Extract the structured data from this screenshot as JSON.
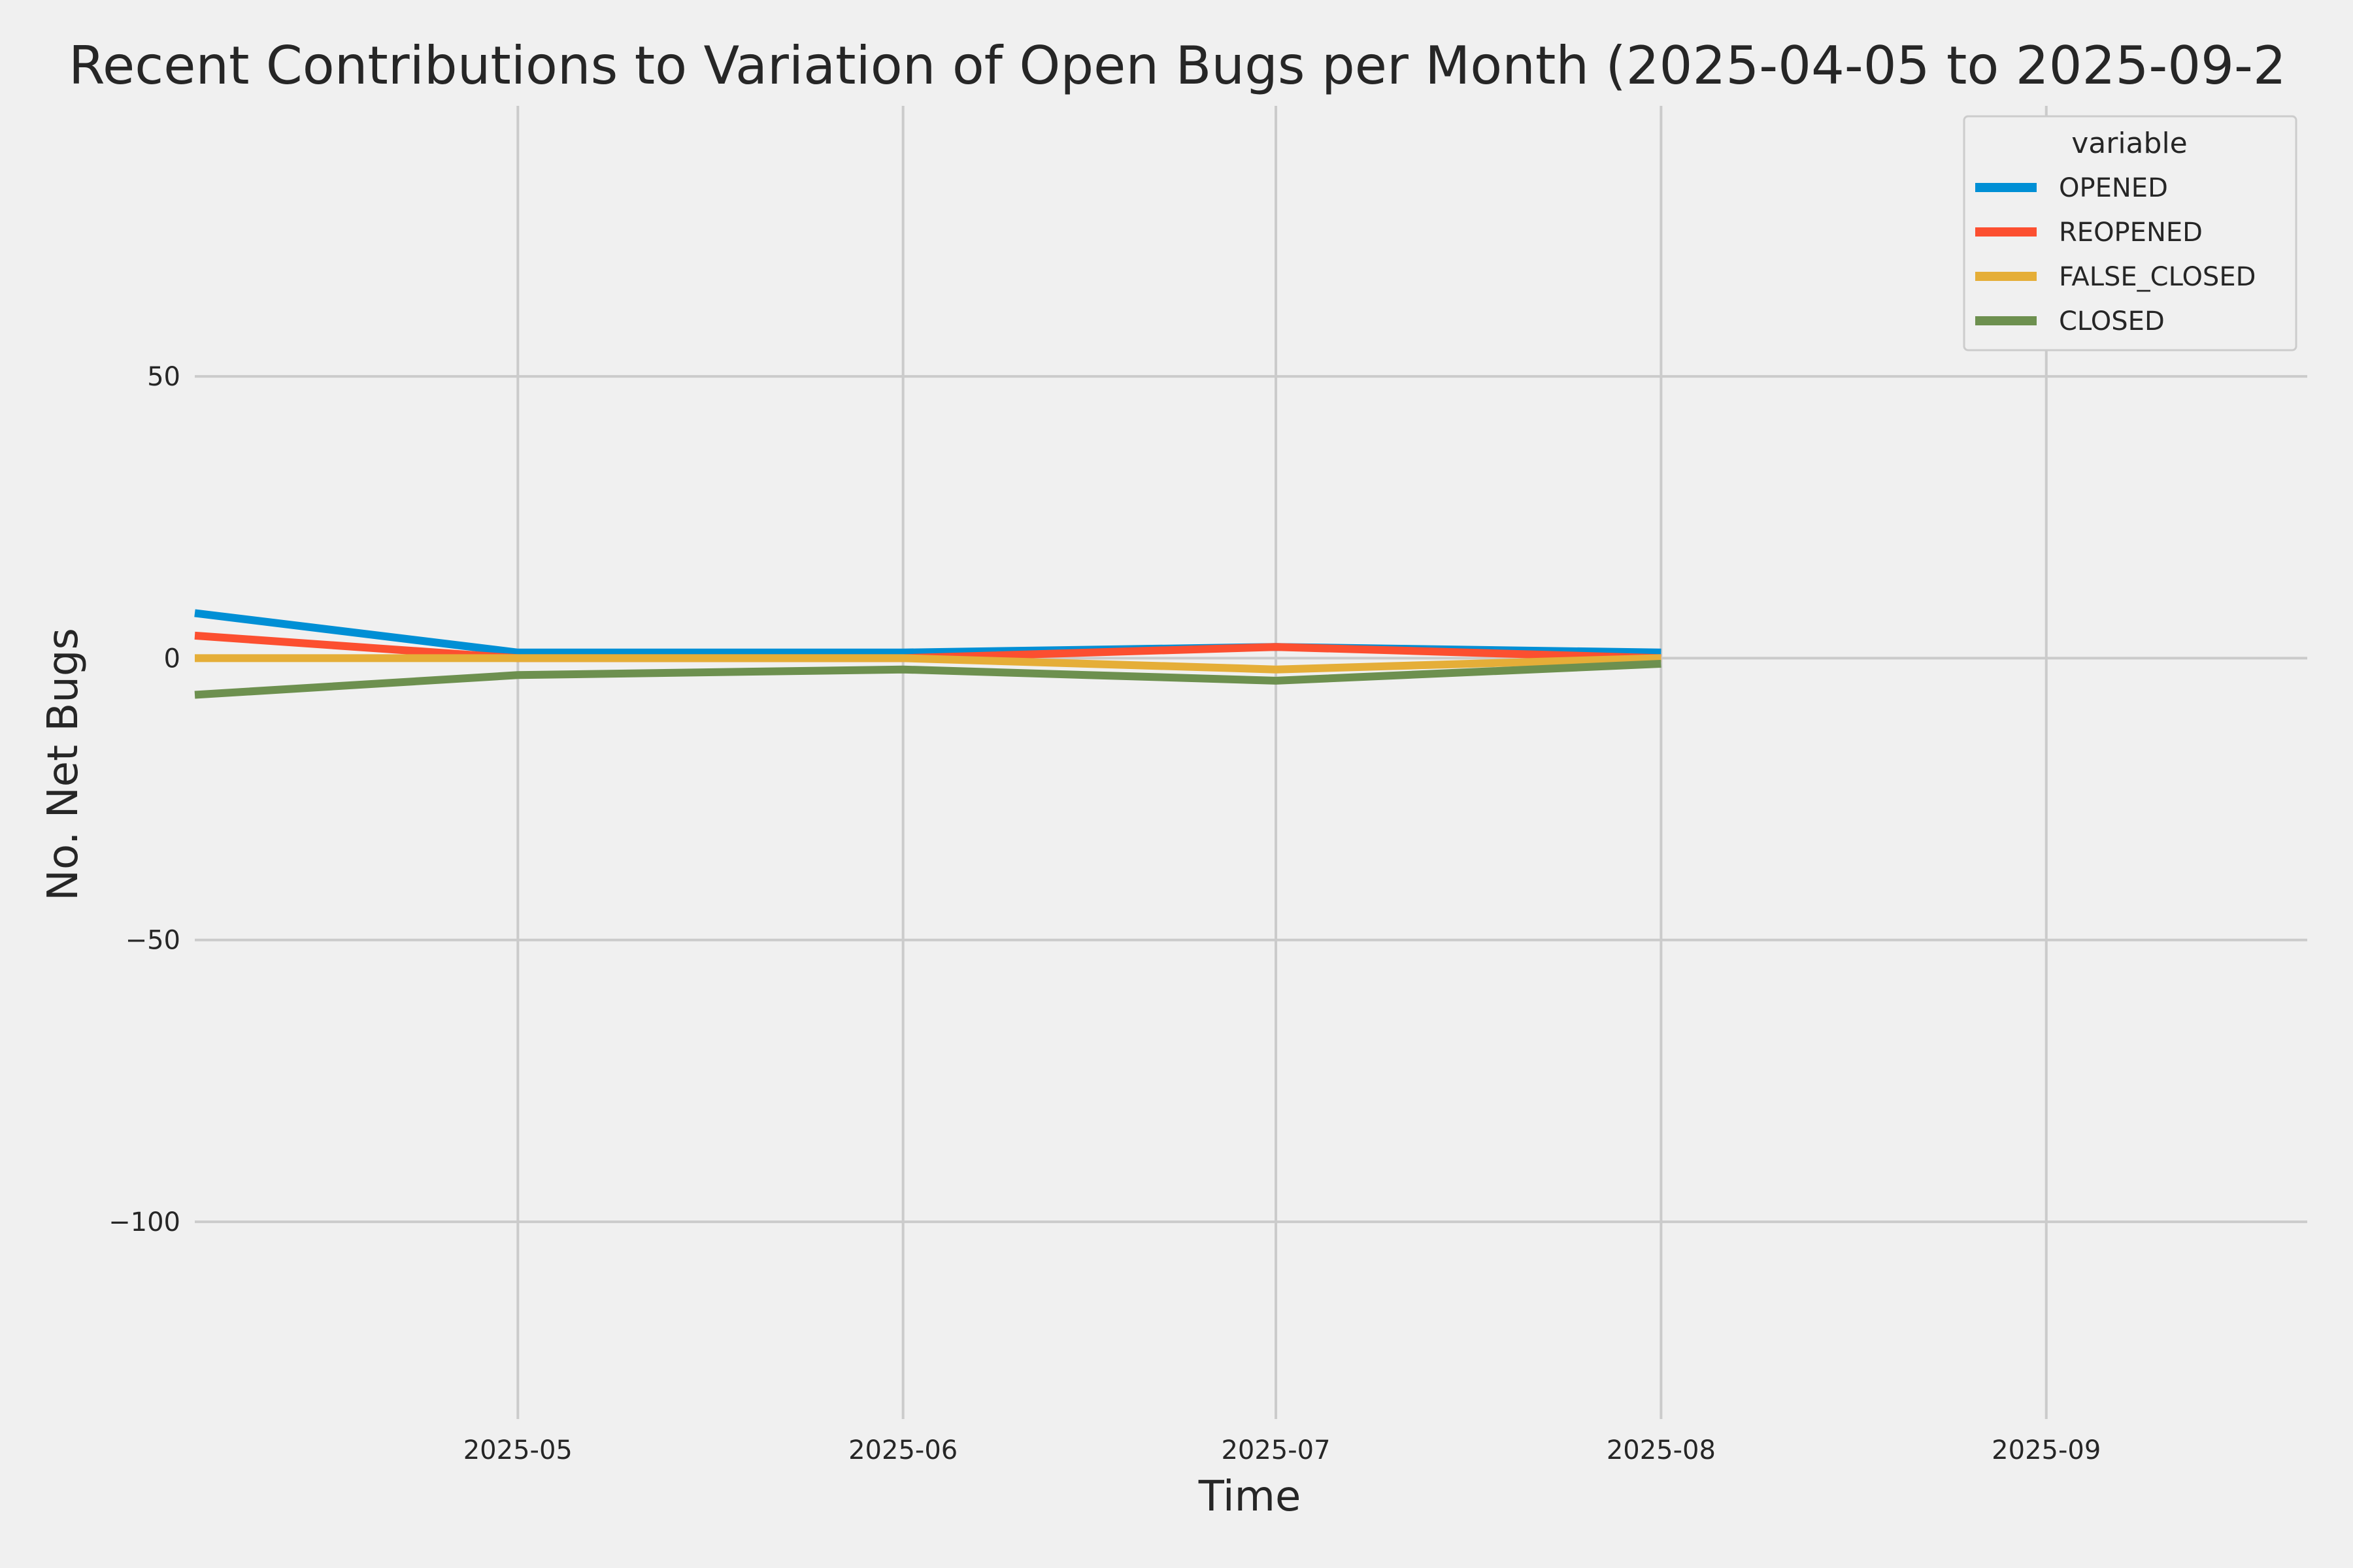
{
  "chart_data": {
    "type": "line",
    "title": "Recent Contributions to Variation of Open Bugs per Month (2025-04-05 to 2025-09-2",
    "xlabel": "Time",
    "ylabel": "No. Net Bugs",
    "x": [
      "2025-04-05",
      "2025-05-01",
      "2025-06-01",
      "2025-07-01",
      "2025-08-01"
    ],
    "x_ticks": [
      {
        "date": "2025-05-01",
        "label": "2025-05"
      },
      {
        "date": "2025-06-01",
        "label": "2025-06"
      },
      {
        "date": "2025-07-01",
        "label": "2025-07"
      },
      {
        "date": "2025-08-01",
        "label": "2025-08"
      },
      {
        "date": "2025-09-01",
        "label": "2025-09"
      }
    ],
    "xlim": [
      "2025-04-05",
      "2025-09-22"
    ],
    "y_ticks": [
      {
        "value": 50,
        "label": "50"
      },
      {
        "value": 0,
        "label": "0"
      },
      {
        "value": -50,
        "label": "−50"
      },
      {
        "value": -100,
        "label": "−100"
      }
    ],
    "ylim": [
      -135,
      98
    ],
    "grid": true,
    "legend": {
      "title": "variable",
      "position": "top-right"
    },
    "series": [
      {
        "name": "OPENED",
        "color": "#008fd5",
        "values": [
          8,
          1,
          1,
          2,
          1
        ]
      },
      {
        "name": "REOPENED",
        "color": "#fc4f30",
        "values": [
          4,
          0,
          0,
          2,
          0
        ]
      },
      {
        "name": "FALSE_CLOSED",
        "color": "#e5ae38",
        "values": [
          0,
          0,
          0,
          -2,
          0
        ]
      },
      {
        "name": "CLOSED",
        "color": "#6d904f",
        "values": [
          -6.5,
          -3,
          -2,
          -4,
          -1
        ]
      }
    ]
  }
}
